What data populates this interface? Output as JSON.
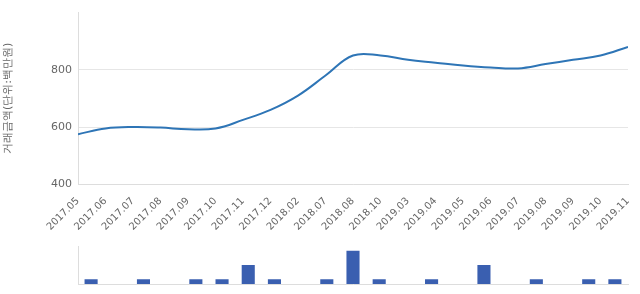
{
  "chart_data": [
    {
      "type": "line",
      "y_label": "거래금액(단위:백만원)",
      "categories": [
        "2017.05",
        "2017.06",
        "2017.07",
        "2017.08",
        "2017.09",
        "2017.10",
        "2017.11",
        "2017.12",
        "2018.02",
        "2018.07",
        "2018.08",
        "2018.10",
        "2019.03",
        "2019.04",
        "2019.05",
        "2019.06",
        "2019.07",
        "2019.08",
        "2019.09",
        "2019.10",
        "2019.11"
      ],
      "values": [
        575,
        595,
        600,
        598,
        592,
        595,
        625,
        660,
        710,
        780,
        850,
        850,
        835,
        825,
        815,
        808,
        805,
        820,
        835,
        850,
        880
      ],
      "color": "#2e75b6",
      "ylim": [
        400,
        1000
      ],
      "yticks": [
        400,
        600,
        800
      ],
      "grid": true
    },
    {
      "type": "bar",
      "categories": [
        "2017.05",
        "2017.06",
        "2017.07",
        "2017.08",
        "2017.09",
        "2017.10",
        "2017.11",
        "2017.12",
        "2018.02",
        "2018.07",
        "2018.08",
        "2018.10",
        "2019.03",
        "2019.04",
        "2019.05",
        "2019.06",
        "2019.07",
        "2019.08",
        "2019.09",
        "2019.10",
        "2019.11"
      ],
      "values": [
        1,
        null,
        1,
        null,
        1,
        1,
        4,
        1,
        null,
        1,
        7,
        1,
        null,
        1,
        null,
        4,
        null,
        1,
        null,
        1,
        1
      ],
      "color": "#3a5fb0",
      "ylim": [
        0,
        8
      ],
      "tick_labels": false,
      "grid": false
    }
  ]
}
